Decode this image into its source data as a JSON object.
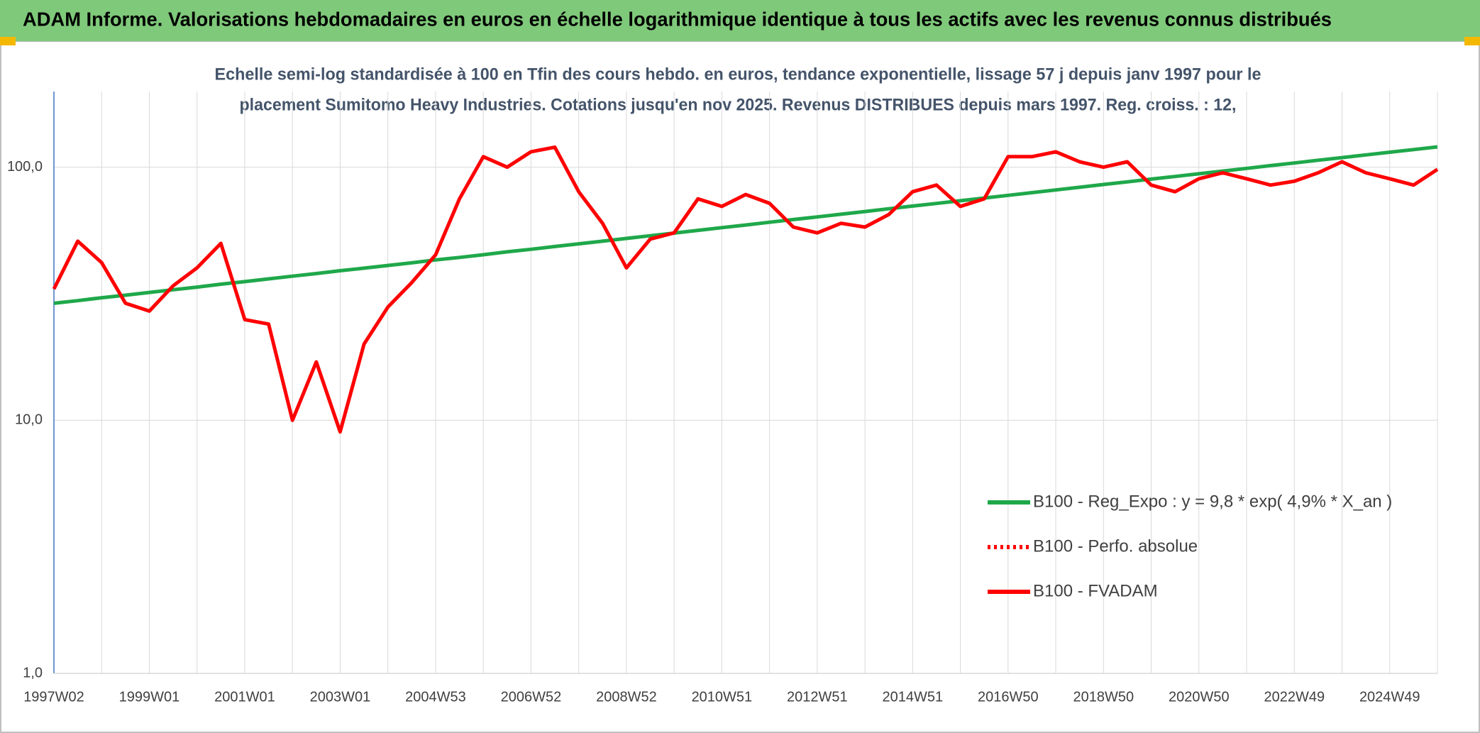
{
  "chart_data": {
    "type": "line",
    "title": "ADAM Informe. Valorisations hebdomadaires en euros en échelle logarithmique identique à tous les actifs avec les revenus connus distribués",
    "subtitle": [
      "Echelle semi-log standardisée à 100 en Tfin des cours hebdo. en euros, tendance exponentielle, lissage 57 j depuis janv 1997 pour le",
      "placement Sumitomo Heavy Industries. Cotations jusqu'en nov 2025. Revenus DISTRIBUES depuis mars 1997. Reg. croiss. : 12,"
    ],
    "log_scale": true,
    "grid": true,
    "legend": "right",
    "categories": [
      "1997W02",
      null,
      null,
      null,
      "1999W01",
      null,
      null,
      null,
      "2001W01",
      null,
      null,
      null,
      "2003W01",
      null,
      null,
      null,
      "2004W53",
      null,
      null,
      null,
      "2006W52",
      null,
      null,
      null,
      "2008W52",
      null,
      null,
      null,
      "2010W51",
      null,
      null,
      null,
      "2012W51",
      null,
      null,
      null,
      "2014W51",
      null,
      null,
      null,
      "2016W50",
      null,
      null,
      null,
      "2018W50",
      null,
      null,
      null,
      "2020W50",
      null,
      null,
      null,
      "2022W49",
      null,
      null,
      null,
      "2024W49",
      null,
      null
    ],
    "series": [
      {
        "name": "B100 - Reg_Expo : y = 9,8 * exp( 4,9% *  X_an )",
        "color": "#1fa84a",
        "dash": false,
        "values": [
          29,
          29.7,
          30.5,
          31.2,
          32,
          32.8,
          33.6,
          34.5,
          35.3,
          36.2,
          37.1,
          38,
          39,
          39.9,
          40.9,
          41.9,
          43,
          44,
          45.1,
          46.3,
          47.4,
          48.6,
          49.8,
          51,
          52.3,
          53.6,
          54.9,
          56.3,
          57.7,
          59.1,
          60.6,
          62.1,
          63.6,
          65.2,
          66.8,
          68.5,
          70.2,
          71.9,
          73.7,
          75.5,
          77.4,
          79.3,
          81.3,
          83.3,
          85.4,
          87.5,
          89.7,
          91.9,
          94.2,
          96.5,
          98.9,
          101.4,
          103.9,
          106.5,
          109.1,
          111.8,
          114.6,
          117.4,
          120.3
        ]
      },
      {
        "name": "B100 - Perfo. absolue",
        "color": "#ff0000",
        "dash": true,
        "values": [
          null,
          null,
          null,
          null,
          null,
          null,
          null,
          null,
          null,
          null,
          null,
          null,
          null,
          null,
          null,
          null,
          null,
          null,
          null,
          null,
          null,
          null,
          null,
          null,
          null,
          null,
          null,
          null,
          null,
          null,
          null,
          null,
          null,
          null,
          null,
          null,
          null,
          null,
          null,
          null,
          null,
          null,
          null,
          null,
          null,
          null,
          null,
          null,
          null,
          null,
          null,
          null,
          null,
          null,
          null,
          null,
          null,
          null,
          null
        ]
      },
      {
        "name": "B100 - FVADAM",
        "color": "#ff0000",
        "dash": false,
        "values": [
          33,
          51,
          42,
          29,
          27,
          34,
          40,
          50,
          25,
          24,
          10,
          17,
          9,
          20,
          28,
          35,
          45,
          75,
          110,
          100,
          115,
          120,
          80,
          60,
          40,
          52,
          55,
          75,
          70,
          78,
          72,
          58,
          55,
          60,
          58,
          65,
          80,
          85,
          70,
          75,
          110,
          110,
          115,
          105,
          100,
          105,
          85,
          80,
          90,
          95,
          90,
          85,
          88,
          95,
          105,
          95,
          90,
          85,
          98
        ]
      }
    ],
    "ylim": [
      1,
      199
    ],
    "yticks": [
      {
        "value": 1,
        "label": "1,0"
      },
      {
        "value": 10,
        "label": "10,0"
      },
      {
        "value": 100,
        "label": "100,0"
      }
    ]
  }
}
